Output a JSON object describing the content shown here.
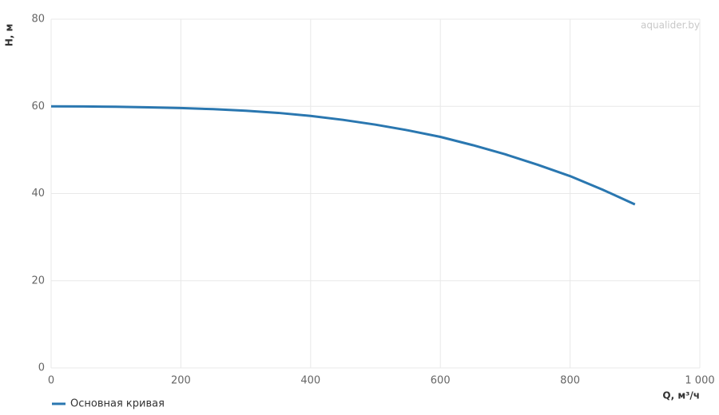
{
  "chart_data": {
    "type": "line",
    "watermark": "aqualider.by",
    "x_label": "Q, м³/ч",
    "y_label": "H, м",
    "x": [
      0,
      50,
      100,
      150,
      200,
      250,
      300,
      350,
      400,
      450,
      500,
      550,
      600,
      650,
      700,
      750,
      800,
      850,
      900
    ],
    "series": [
      {
        "name": "Основная кривая",
        "color": "#2a77b0",
        "values": [
          60,
          59.97,
          59.9,
          59.78,
          59.6,
          59.35,
          59.0,
          58.5,
          57.8,
          56.9,
          55.8,
          54.5,
          53.0,
          51.1,
          49.0,
          46.6,
          44.0,
          40.9,
          37.5
        ]
      }
    ],
    "xlim": [
      0,
      1000
    ],
    "xticks": [
      0,
      200,
      400,
      600,
      800,
      {
        "value": 1000,
        "label": "1 000"
      }
    ],
    "ylim": [
      0,
      80
    ],
    "yticks": [
      0,
      20,
      40,
      60,
      80
    ],
    "grid": true
  }
}
